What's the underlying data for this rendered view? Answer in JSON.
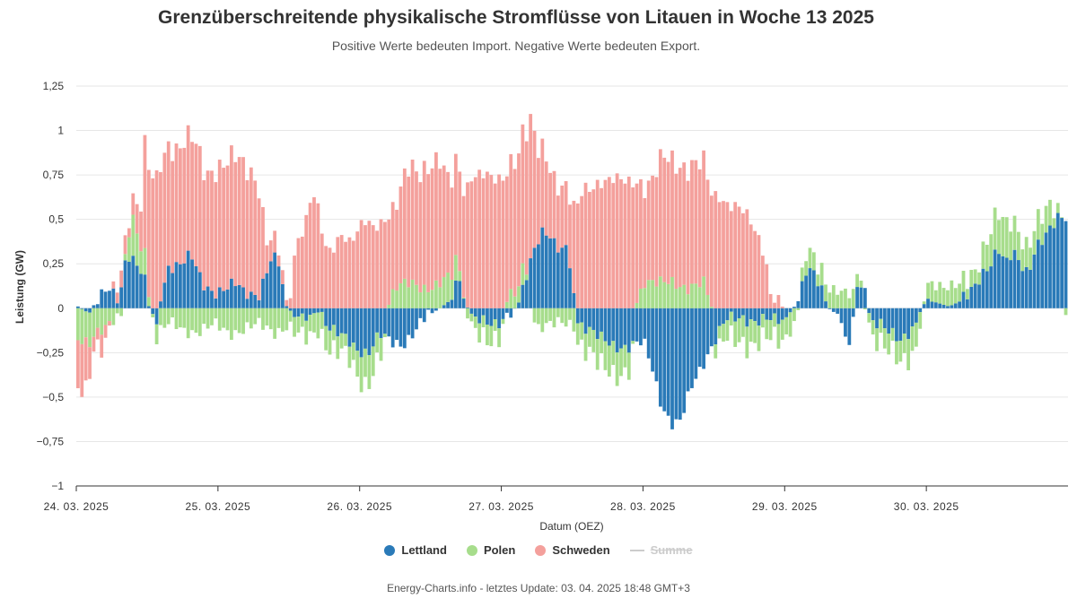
{
  "title": "Grenzüberschreitende physikalische Stromflüsse von Litauen in Woche 13 2025",
  "subtitle": "Positive Werte bedeuten Import. Negative Werte bedeuten Export.",
  "credits": "Energy-Charts.info - letztes Update: 03. 04. 2025 18:48 GMT+3",
  "colors": {
    "lettland": "#2a7ab8",
    "polen": "#a7dd8c",
    "schweden": "#f4a09c",
    "summe": "#cccccc"
  },
  "chart_data": {
    "type": "bar",
    "stacked": true,
    "x_unit": "hour",
    "x_start": "24. 03. 2025 00:00",
    "ylabel": "Leistung (GW)",
    "xlabel": "Datum (OEZ)",
    "ylim": [
      -1,
      1.25
    ],
    "yticks": [
      {
        "v": 1.25,
        "label": "1,25"
      },
      {
        "v": 1,
        "label": "1"
      },
      {
        "v": 0.75,
        "label": "0,75"
      },
      {
        "v": 0.5,
        "label": "0,5"
      },
      {
        "v": 0.25,
        "label": "0,25"
      },
      {
        "v": 0,
        "label": "0"
      },
      {
        "v": -0.25,
        "label": "−0,25"
      },
      {
        "v": -0.5,
        "label": "−0,5"
      },
      {
        "v": -0.75,
        "label": "−0,75"
      },
      {
        "v": -1,
        "label": "−1"
      }
    ],
    "xticks": [
      "24. 03. 2025",
      "25. 03. 2025",
      "26. 03. 2025",
      "27. 03. 2025",
      "28. 03. 2025",
      "29. 03. 2025",
      "30. 03. 2025"
    ],
    "grid": true,
    "legend_position": "bottom-center",
    "series": [
      {
        "name": "Lettland",
        "keypoints": [
          [
            0,
            0.01
          ],
          [
            3,
            -0.03
          ],
          [
            5,
            0.05
          ],
          [
            8,
            0.1
          ],
          [
            10,
            0.05
          ],
          [
            11,
            0.0
          ],
          [
            12,
            0.24
          ],
          [
            14,
            0.33
          ],
          [
            15,
            0.27
          ],
          [
            17,
            0.21
          ],
          [
            18,
            0.13
          ],
          [
            19,
            -0.02
          ],
          [
            21,
            -0.05
          ],
          [
            24,
            0.24
          ],
          [
            27,
            0.26
          ],
          [
            30,
            0.29
          ],
          [
            33,
            0.13
          ],
          [
            36,
            0.1
          ],
          [
            42,
            0.13
          ],
          [
            44,
            0.08
          ],
          [
            48,
            0.09
          ],
          [
            51,
            0.27
          ],
          [
            53,
            0.27
          ],
          [
            55,
            0.02
          ],
          [
            59,
            -0.08
          ],
          [
            62,
            -0.03
          ],
          [
            65,
            -0.02
          ],
          [
            66,
            -0.09
          ],
          [
            69,
            -0.15
          ],
          [
            74,
            -0.23
          ],
          [
            77,
            -0.24
          ],
          [
            80,
            -0.15
          ],
          [
            83,
            -0.2
          ],
          [
            86,
            -0.2
          ],
          [
            89,
            -0.13
          ],
          [
            93,
            -0.04
          ],
          [
            96,
            0.0
          ],
          [
            99,
            0.05
          ],
          [
            101,
            0.17
          ],
          [
            103,
            0.04
          ],
          [
            104,
            -0.07
          ],
          [
            108,
            -0.06
          ],
          [
            112,
            -0.08
          ],
          [
            115,
            -0.04
          ],
          [
            117,
            0.05
          ],
          [
            121,
            0.31
          ],
          [
            123,
            0.42
          ],
          [
            125,
            0.43
          ],
          [
            127,
            0.36
          ],
          [
            130,
            0.33
          ],
          [
            132,
            -0.05
          ],
          [
            134,
            -0.1
          ],
          [
            138,
            -0.17
          ],
          [
            142,
            -0.2
          ],
          [
            146,
            -0.22
          ],
          [
            150,
            -0.2
          ],
          [
            152,
            -0.31
          ],
          [
            155,
            -0.55
          ],
          [
            158,
            -0.67
          ],
          [
            160,
            -0.64
          ],
          [
            163,
            -0.42
          ],
          [
            166,
            -0.29
          ],
          [
            168,
            -0.22
          ],
          [
            172,
            -0.07
          ],
          [
            176,
            -0.04
          ],
          [
            180,
            -0.08
          ],
          [
            184,
            -0.07
          ],
          [
            188,
            -0.05
          ],
          [
            191,
            0.04
          ],
          [
            193,
            0.23
          ],
          [
            195,
            0.23
          ],
          [
            197,
            0.11
          ],
          [
            199,
            0.0
          ],
          [
            201,
            -0.03
          ],
          [
            203,
            -0.1
          ],
          [
            205,
            -0.3
          ],
          [
            206,
            0.12
          ],
          [
            208,
            0.15
          ],
          [
            210,
            -0.05
          ],
          [
            213,
            -0.08
          ],
          [
            215,
            -0.14
          ],
          [
            218,
            -0.2
          ],
          [
            222,
            -0.08
          ],
          [
            225,
            0.05
          ],
          [
            228,
            0.03
          ],
          [
            231,
            0.01
          ],
          [
            234,
            0.04
          ],
          [
            236,
            0.08
          ],
          [
            238,
            0.15
          ],
          [
            240,
            0.21
          ],
          [
            242,
            0.24
          ],
          [
            244,
            0.32
          ],
          [
            246,
            0.24
          ],
          [
            248,
            0.33
          ],
          [
            250,
            0.27
          ],
          [
            252,
            0.2
          ],
          [
            254,
            0.33
          ],
          [
            256,
            0.37
          ],
          [
            258,
            0.45
          ],
          [
            260,
            0.53
          ],
          [
            263,
            0.53
          ]
        ]
      },
      {
        "name": "Polen",
        "keypoints": [
          [
            0,
            -0.18
          ],
          [
            3,
            -0.2
          ],
          [
            6,
            -0.12
          ],
          [
            9,
            -0.05
          ],
          [
            12,
            -0.04
          ],
          [
            14,
            0.25
          ],
          [
            16,
            0.18
          ],
          [
            18,
            0.1
          ],
          [
            20,
            -0.03
          ],
          [
            22,
            -0.12
          ],
          [
            24,
            -0.09
          ],
          [
            28,
            -0.13
          ],
          [
            32,
            -0.12
          ],
          [
            36,
            -0.1
          ],
          [
            40,
            -0.14
          ],
          [
            44,
            -0.11
          ],
          [
            48,
            -0.1
          ],
          [
            52,
            -0.13
          ],
          [
            56,
            -0.09
          ],
          [
            60,
            -0.12
          ],
          [
            64,
            -0.1
          ],
          [
            68,
            -0.12
          ],
          [
            72,
            -0.1
          ],
          [
            76,
            -0.17
          ],
          [
            80,
            -0.14
          ],
          [
            84,
            0.12
          ],
          [
            88,
            0.13
          ],
          [
            92,
            0.12
          ],
          [
            96,
            0.14
          ],
          [
            100,
            0.12
          ],
          [
            104,
            -0.08
          ],
          [
            108,
            -0.09
          ],
          [
            112,
            -0.07
          ],
          [
            115,
            0.11
          ],
          [
            118,
            0.1
          ],
          [
            122,
            -0.1
          ],
          [
            126,
            -0.1
          ],
          [
            130,
            -0.08
          ],
          [
            134,
            -0.11
          ],
          [
            138,
            -0.17
          ],
          [
            142,
            -0.15
          ],
          [
            146,
            -0.13
          ],
          [
            150,
            0.16
          ],
          [
            154,
            0.13
          ],
          [
            158,
            0.15
          ],
          [
            162,
            0.12
          ],
          [
            166,
            0.13
          ],
          [
            170,
            -0.11
          ],
          [
            174,
            -0.12
          ],
          [
            178,
            -0.13
          ],
          [
            182,
            -0.12
          ],
          [
            186,
            -0.11
          ],
          [
            190,
            -0.08
          ],
          [
            193,
            0.13
          ],
          [
            196,
            0.1
          ],
          [
            200,
            0.08
          ],
          [
            203,
            0.1
          ],
          [
            206,
            0.11
          ],
          [
            210,
            -0.06
          ],
          [
            214,
            -0.11
          ],
          [
            218,
            -0.13
          ],
          [
            222,
            -0.14
          ],
          [
            226,
            0.12
          ],
          [
            230,
            0.11
          ],
          [
            234,
            0.08
          ],
          [
            238,
            0.09
          ],
          [
            242,
            0.19
          ],
          [
            246,
            0.2
          ],
          [
            250,
            0.17
          ],
          [
            254,
            0.13
          ],
          [
            258,
            0.12
          ],
          [
            263,
            -0.08
          ]
        ]
      },
      {
        "name": "Schweden",
        "keypoints": [
          [
            0,
            -0.27
          ],
          [
            2,
            -0.3
          ],
          [
            4,
            -0.09
          ],
          [
            6,
            -0.1
          ],
          [
            8,
            -0.05
          ],
          [
            9,
            0.02
          ],
          [
            10,
            0.07
          ],
          [
            12,
            0.1
          ],
          [
            14,
            0.1
          ],
          [
            15,
            0.13
          ],
          [
            17,
            0.27
          ],
          [
            18,
            0.71
          ],
          [
            20,
            0.72
          ],
          [
            22,
            0.75
          ],
          [
            24,
            0.7
          ],
          [
            26,
            0.66
          ],
          [
            28,
            0.67
          ],
          [
            30,
            0.66
          ],
          [
            32,
            0.68
          ],
          [
            34,
            0.63
          ],
          [
            36,
            0.7
          ],
          [
            38,
            0.71
          ],
          [
            40,
            0.71
          ],
          [
            42,
            0.7
          ],
          [
            44,
            0.7
          ],
          [
            46,
            0.69
          ],
          [
            48,
            0.62
          ],
          [
            50,
            0.18
          ],
          [
            52,
            0.08
          ],
          [
            54,
            0.06
          ],
          [
            56,
            0.02
          ],
          [
            58,
            0.4
          ],
          [
            60,
            0.46
          ],
          [
            61,
            0.55
          ],
          [
            62,
            0.66
          ],
          [
            63,
            0.6
          ],
          [
            64,
            0.52
          ],
          [
            65,
            0.39
          ],
          [
            66,
            0.3
          ],
          [
            68,
            0.35
          ],
          [
            70,
            0.44
          ],
          [
            72,
            0.38
          ],
          [
            74,
            0.42
          ],
          [
            76,
            0.48
          ],
          [
            78,
            0.45
          ],
          [
            80,
            0.48
          ],
          [
            82,
            0.53
          ],
          [
            84,
            0.45
          ],
          [
            86,
            0.55
          ],
          [
            88,
            0.65
          ],
          [
            90,
            0.63
          ],
          [
            92,
            0.69
          ],
          [
            94,
            0.71
          ],
          [
            96,
            0.69
          ],
          [
            98,
            0.53
          ],
          [
            100,
            0.53
          ],
          [
            102,
            0.58
          ],
          [
            104,
            0.75
          ],
          [
            106,
            0.76
          ],
          [
            108,
            0.75
          ],
          [
            110,
            0.71
          ],
          [
            112,
            0.72
          ],
          [
            114,
            0.74
          ],
          [
            116,
            0.76
          ],
          [
            118,
            0.76
          ],
          [
            120,
            0.78
          ],
          [
            122,
            0.5
          ],
          [
            124,
            0.44
          ],
          [
            126,
            0.37
          ],
          [
            128,
            0.36
          ],
          [
            130,
            0.33
          ],
          [
            132,
            0.53
          ],
          [
            134,
            0.67
          ],
          [
            136,
            0.68
          ],
          [
            138,
            0.72
          ],
          [
            140,
            0.72
          ],
          [
            142,
            0.72
          ],
          [
            144,
            0.71
          ],
          [
            146,
            0.71
          ],
          [
            148,
            0.71
          ],
          [
            150,
            0.55
          ],
          [
            152,
            0.55
          ],
          [
            154,
            0.66
          ],
          [
            156,
            0.7
          ],
          [
            158,
            0.68
          ],
          [
            160,
            0.69
          ],
          [
            162,
            0.68
          ],
          [
            164,
            0.68
          ],
          [
            166,
            0.66
          ],
          [
            168,
            0.63
          ],
          [
            170,
            0.64
          ],
          [
            172,
            0.6
          ],
          [
            174,
            0.58
          ],
          [
            176,
            0.55
          ],
          [
            178,
            0.49
          ],
          [
            180,
            0.42
          ],
          [
            182,
            0.32
          ],
          [
            183,
            0.22
          ],
          [
            184,
            0.02
          ],
          [
            186,
            0.05
          ],
          [
            187,
            0.0
          ],
          [
            263,
            0.0
          ]
        ]
      }
    ]
  },
  "legend": [
    {
      "label": "Lettland",
      "key": "lettland",
      "kind": "dot",
      "enabled": true
    },
    {
      "label": "Polen",
      "key": "polen",
      "kind": "dot",
      "enabled": true
    },
    {
      "label": "Schweden",
      "key": "schweden",
      "kind": "dot",
      "enabled": true
    },
    {
      "label": "Summe",
      "key": "summe",
      "kind": "line",
      "enabled": false
    }
  ]
}
